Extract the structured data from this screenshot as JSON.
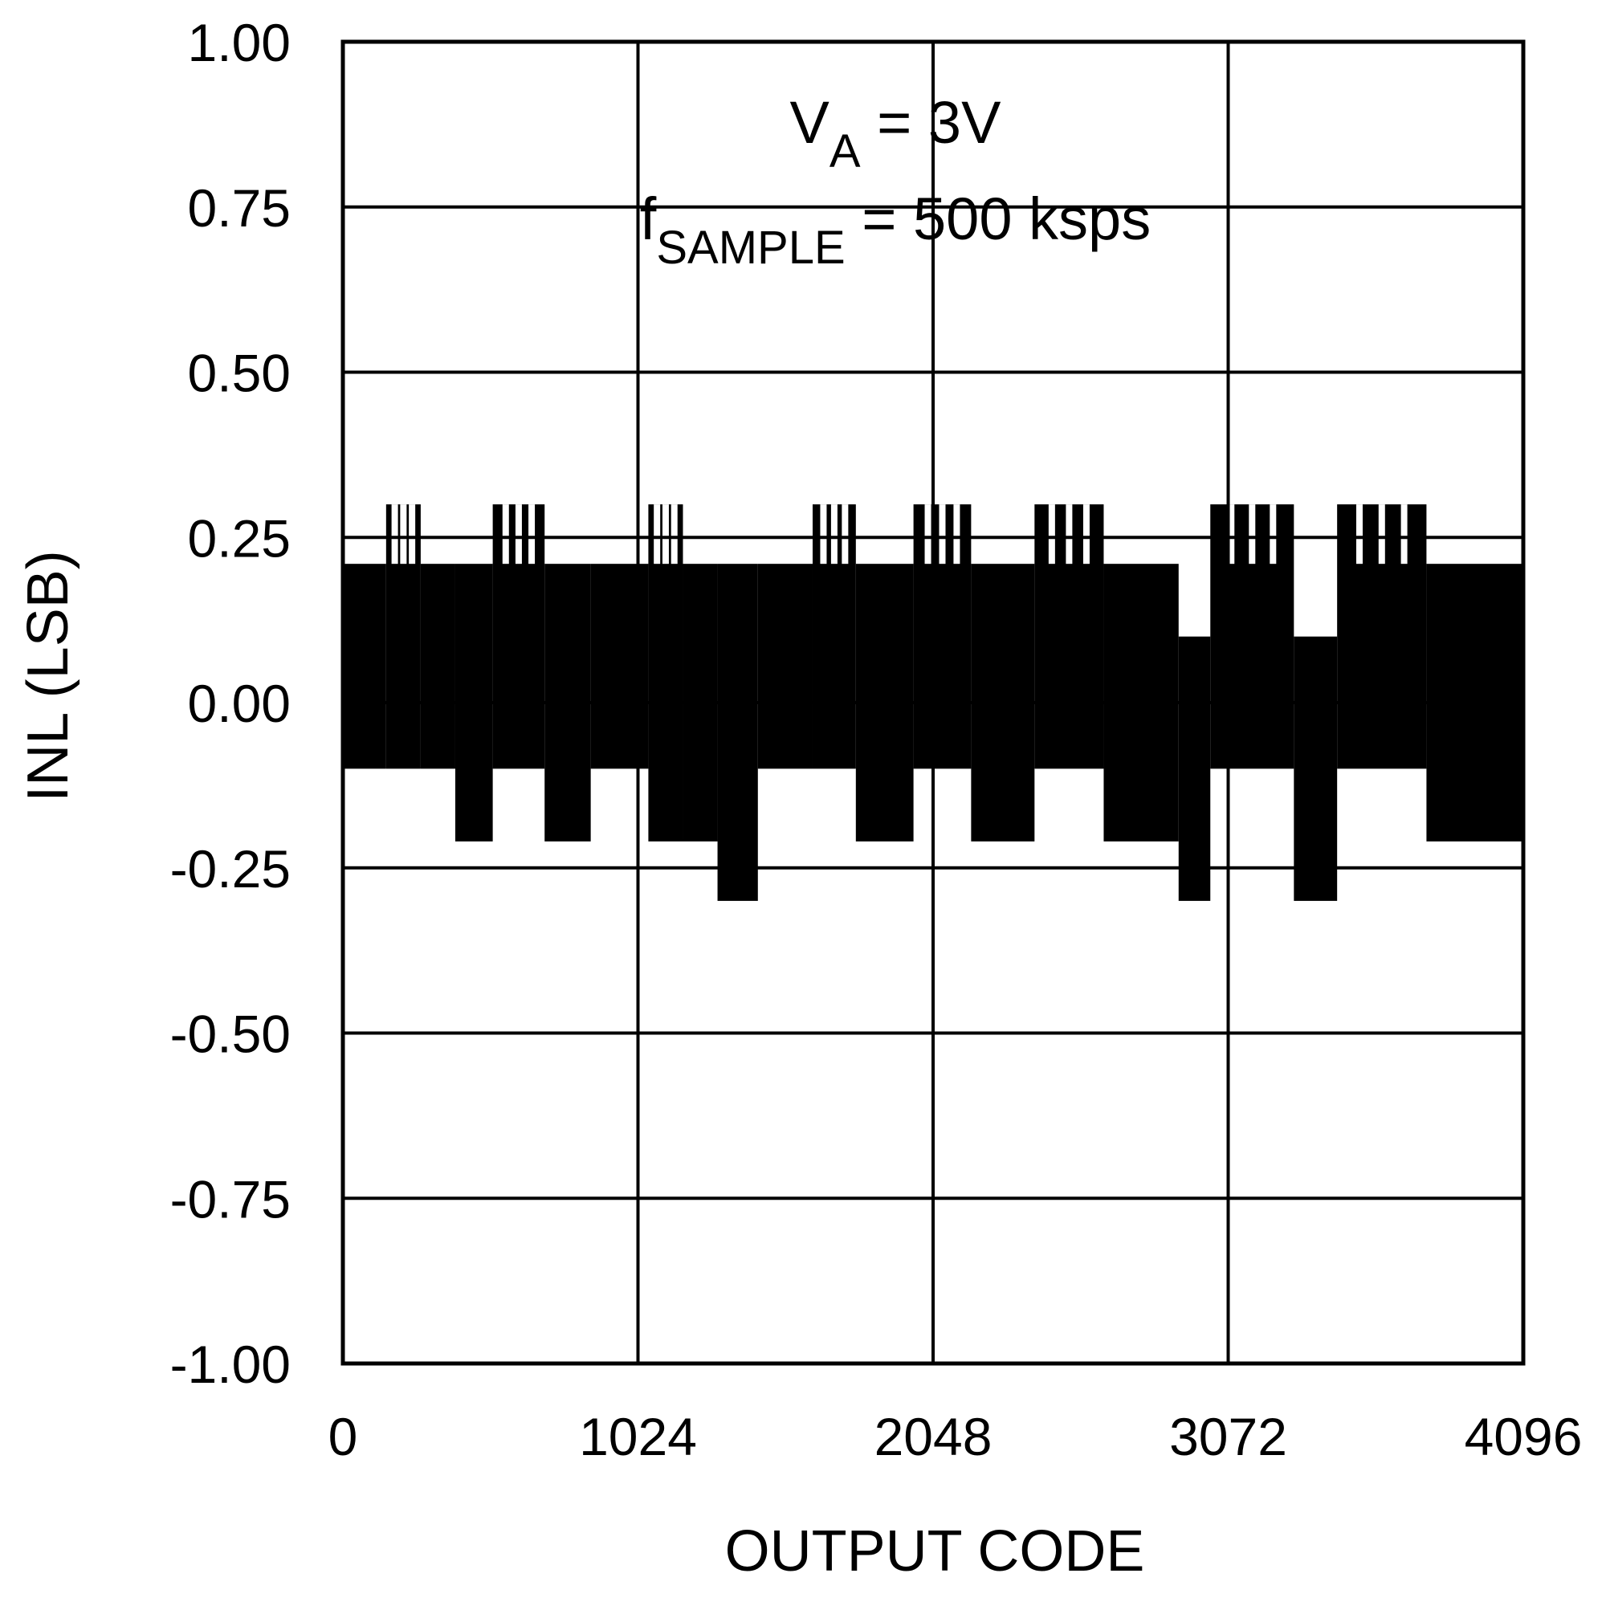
{
  "chart_data": {
    "type": "line",
    "title": "",
    "xlabel": "OUTPUT CODE",
    "ylabel": "INL (LSB)",
    "xlim": [
      0,
      4096
    ],
    "ylim": [
      -1.0,
      1.0
    ],
    "grid": true,
    "xticks": [
      0,
      1024,
      2048,
      3072,
      4096
    ],
    "xtick_labels": [
      "0",
      "1024",
      "2048",
      "3072",
      "4096"
    ],
    "yticks": [
      1.0,
      0.75,
      0.5,
      0.25,
      0.0,
      -0.25,
      -0.5,
      -0.75,
      -1.0
    ],
    "ytick_labels": [
      "1.00",
      "0.75",
      "0.50",
      "0.25",
      "0.00",
      "-0.25",
      "-0.50",
      "-0.75",
      "-1.00"
    ],
    "annotations": [
      {
        "main": "V",
        "sub": "A",
        "rest": " = 3V"
      },
      {
        "main": "f",
        "sub": "SAMPLE",
        "rest": " = 500 ksps"
      }
    ],
    "series": [
      {
        "color": "#000000",
        "bands": [
          {
            "x": [
              0,
              150
            ],
            "low": -0.1,
            "high": 0.21
          },
          {
            "x": [
              150,
              270
            ],
            "low": -0.1,
            "high": 0.3
          },
          {
            "x": [
              270,
              390
            ],
            "low": -0.1,
            "high": 0.21
          },
          {
            "x": [
              390,
              520
            ],
            "low": -0.21,
            "high": 0.21
          },
          {
            "x": [
              520,
              700
            ],
            "low": -0.1,
            "high": 0.3
          },
          {
            "x": [
              700,
              860
            ],
            "low": -0.21,
            "high": 0.21
          },
          {
            "x": [
              860,
              1060
            ],
            "low": -0.1,
            "high": 0.21
          },
          {
            "x": [
              1060,
              1180
            ],
            "low": -0.21,
            "high": 0.3
          },
          {
            "x": [
              1180,
              1300
            ],
            "low": -0.21,
            "high": 0.21
          },
          {
            "x": [
              1300,
              1440
            ],
            "low": -0.3,
            "high": 0.21
          },
          {
            "x": [
              1440,
              1630
            ],
            "low": -0.1,
            "high": 0.21
          },
          {
            "x": [
              1630,
              1780
            ],
            "low": -0.1,
            "high": 0.3
          },
          {
            "x": [
              1780,
              1980
            ],
            "low": -0.21,
            "high": 0.21
          },
          {
            "x": [
              1980,
              2180
            ],
            "low": -0.1,
            "high": 0.3
          },
          {
            "x": [
              2180,
              2400
            ],
            "low": -0.21,
            "high": 0.21
          },
          {
            "x": [
              2400,
              2640
            ],
            "low": -0.1,
            "high": 0.3
          },
          {
            "x": [
              2640,
              2900
            ],
            "low": -0.21,
            "high": 0.21
          },
          {
            "x": [
              2900,
              3010
            ],
            "low": -0.3,
            "high": 0.1
          },
          {
            "x": [
              3010,
              3300
            ],
            "low": -0.1,
            "high": 0.3
          },
          {
            "x": [
              3300,
              3450
            ],
            "low": -0.3,
            "high": 0.1
          },
          {
            "x": [
              3450,
              3760
            ],
            "low": -0.1,
            "high": 0.3
          },
          {
            "x": [
              3760,
              4096
            ],
            "low": -0.21,
            "high": 0.21
          }
        ]
      }
    ]
  }
}
